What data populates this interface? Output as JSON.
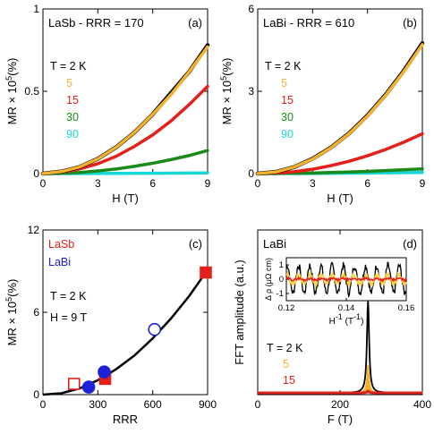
{
  "colors": {
    "T2": "#000000",
    "T5": "#f2b22e",
    "T15": "#e3201b",
    "T30": "#1a8a1a",
    "T90": "#17d6d6",
    "LaSb": "#e3201b",
    "LaBi": "#1c22d8",
    "fit": "#000000",
    "inset_yellow": "#f7d24b"
  },
  "chart_data": [
    {
      "type": "line",
      "panel": "(a)",
      "title": "LaSb - RRR = 170",
      "xlabel": "H (T)",
      "ylabel_main": "MR × 10",
      "ylabel_exp": "5",
      "ylabel_unit": "(%)",
      "xlim": [
        0,
        9
      ],
      "ylim": [
        0,
        1
      ],
      "xticks": [
        "0",
        "3",
        "6",
        "9"
      ],
      "yticks": [
        "0",
        "0.5",
        "1"
      ],
      "legend_header": "T = 2  K",
      "series": [
        {
          "name": "2",
          "color": "#000000",
          "x": [
            0,
            1,
            2,
            3,
            4,
            5,
            6,
            7,
            8,
            9
          ],
          "y": [
            0,
            0.012,
            0.04,
            0.09,
            0.16,
            0.25,
            0.36,
            0.49,
            0.62,
            0.78
          ]
        },
        {
          "name": "5",
          "color": "#f2b22e",
          "x": [
            0,
            1,
            2,
            3,
            4,
            5,
            6,
            7,
            8,
            9
          ],
          "y": [
            0,
            0.012,
            0.04,
            0.09,
            0.16,
            0.25,
            0.36,
            0.48,
            0.62,
            0.77
          ]
        },
        {
          "name": "15",
          "color": "#e3201b",
          "x": [
            0,
            1,
            2,
            3,
            4,
            5,
            6,
            7,
            8,
            9
          ],
          "y": [
            0,
            0.008,
            0.028,
            0.06,
            0.105,
            0.165,
            0.235,
            0.32,
            0.42,
            0.53
          ]
        },
        {
          "name": "30",
          "color": "#1a8a1a",
          "x": [
            0,
            1,
            2,
            3,
            4,
            5,
            6,
            7,
            8,
            9
          ],
          "y": [
            0,
            0.002,
            0.007,
            0.016,
            0.028,
            0.044,
            0.063,
            0.085,
            0.11,
            0.14
          ]
        },
        {
          "name": "90",
          "color": "#17d6d6",
          "x": [
            0,
            3,
            6,
            9
          ],
          "y": [
            0,
            0.001,
            0.002,
            0.004
          ]
        }
      ]
    },
    {
      "type": "line",
      "panel": "(b)",
      "title": "LaBi - RRR = 610",
      "xlabel": "H (T)",
      "ylabel_main": "MR × 10",
      "ylabel_exp": "5",
      "ylabel_unit": "(%)",
      "xlim": [
        0,
        9
      ],
      "ylim": [
        0,
        6
      ],
      "xticks": [
        "0",
        "3",
        "6",
        "9"
      ],
      "yticks": [
        "0",
        "3",
        "6"
      ],
      "legend_header": "T = 2  K",
      "series": [
        {
          "name": "2",
          "color": "#000000",
          "x": [
            0,
            1,
            2,
            3,
            4,
            5,
            6,
            7,
            8,
            9
          ],
          "y": [
            0,
            0.06,
            0.24,
            0.54,
            0.95,
            1.47,
            2.12,
            2.88,
            3.76,
            4.75
          ]
        },
        {
          "name": "5",
          "color": "#f2b22e",
          "x": [
            0,
            1,
            2,
            3,
            4,
            5,
            6,
            7,
            8,
            9
          ],
          "y": [
            0,
            0.06,
            0.24,
            0.53,
            0.94,
            1.46,
            2.1,
            2.86,
            3.73,
            4.7
          ]
        },
        {
          "name": "15",
          "color": "#e3201b",
          "x": [
            0,
            1,
            2,
            3,
            4,
            5,
            6,
            7,
            8,
            9
          ],
          "y": [
            0,
            0.018,
            0.07,
            0.16,
            0.29,
            0.45,
            0.65,
            0.88,
            1.15,
            1.45
          ]
        },
        {
          "name": "30",
          "color": "#1a8a1a",
          "x": [
            0,
            3,
            6,
            9
          ],
          "y": [
            0,
            0.02,
            0.08,
            0.17
          ]
        },
        {
          "name": "90",
          "color": "#17d6d6",
          "x": [
            0,
            3,
            6,
            9
          ],
          "y": [
            0,
            0.005,
            0.02,
            0.04
          ]
        }
      ]
    },
    {
      "type": "scatter",
      "panel": "(c)",
      "xlabel": "RRR",
      "ylabel_main": "MR × 10",
      "ylabel_exp": "5",
      "ylabel_unit": "(%)",
      "xlim": [
        0,
        900
      ],
      "ylim": [
        0,
        12
      ],
      "xticks": [
        "0",
        "300",
        "600",
        "900"
      ],
      "yticks": [
        "0",
        "6",
        "12"
      ],
      "legend": [
        "LaSb",
        "LaBi"
      ],
      "condition_1": "T = 2 K",
      "condition_2": "H = 9 T",
      "fit_curve": {
        "x": [
          0,
          100,
          200,
          300,
          400,
          500,
          600,
          700,
          800,
          900
        ],
        "y": [
          0,
          0.1,
          0.45,
          1.05,
          1.85,
          2.85,
          4.1,
          5.55,
          7.2,
          9.1
        ]
      },
      "series": [
        {
          "name": "LaSb",
          "marker": "square",
          "filled": true,
          "points": [
            [
              340,
              1.15
            ],
            [
              890,
              8.9
            ]
          ]
        },
        {
          "name": "LaSb",
          "marker": "square",
          "filled": false,
          "points": [
            [
              170,
              0.78
            ]
          ]
        },
        {
          "name": "LaBi",
          "marker": "circle",
          "filled": true,
          "points": [
            [
              250,
              0.55
            ],
            [
              335,
              1.65
            ]
          ]
        },
        {
          "name": "LaBi",
          "marker": "circle",
          "filled": false,
          "points": [
            [
              610,
              4.75
            ]
          ]
        }
      ]
    },
    {
      "type": "line",
      "panel": "(d)",
      "title": "LaBi",
      "xlabel": "F (T)",
      "ylabel": "FFT amplitude (a.u.)",
      "xlim": [
        0,
        400
      ],
      "xticks": [
        "0",
        "200",
        "400"
      ],
      "legend_header": "T = 2  K",
      "series": [
        {
          "name": "2",
          "color": "#000000",
          "peak_x": 268,
          "peak_height": 1.0
        },
        {
          "name": "5",
          "color": "#f2b22e",
          "peak_x": 268,
          "peak_height": 0.3
        },
        {
          "name": "15",
          "color": "#e3201b",
          "peak_x": 268,
          "peak_height": 0.02
        }
      ],
      "inset": {
        "xlabel_main": "H",
        "xlabel_exp": "-1",
        "xlabel_unit": " (T",
        "xlabel_unit_exp": "-1",
        "xlabel_close": ")",
        "ylabel": "Δ ρ (μΩ cm)",
        "xlim": [
          0.12,
          0.16
        ],
        "ylim": [
          -1.5,
          1.5
        ],
        "xticks": [
          "0.12",
          "0.14",
          "0.16"
        ],
        "yticks": [
          "-1",
          "0",
          "1"
        ]
      }
    }
  ]
}
